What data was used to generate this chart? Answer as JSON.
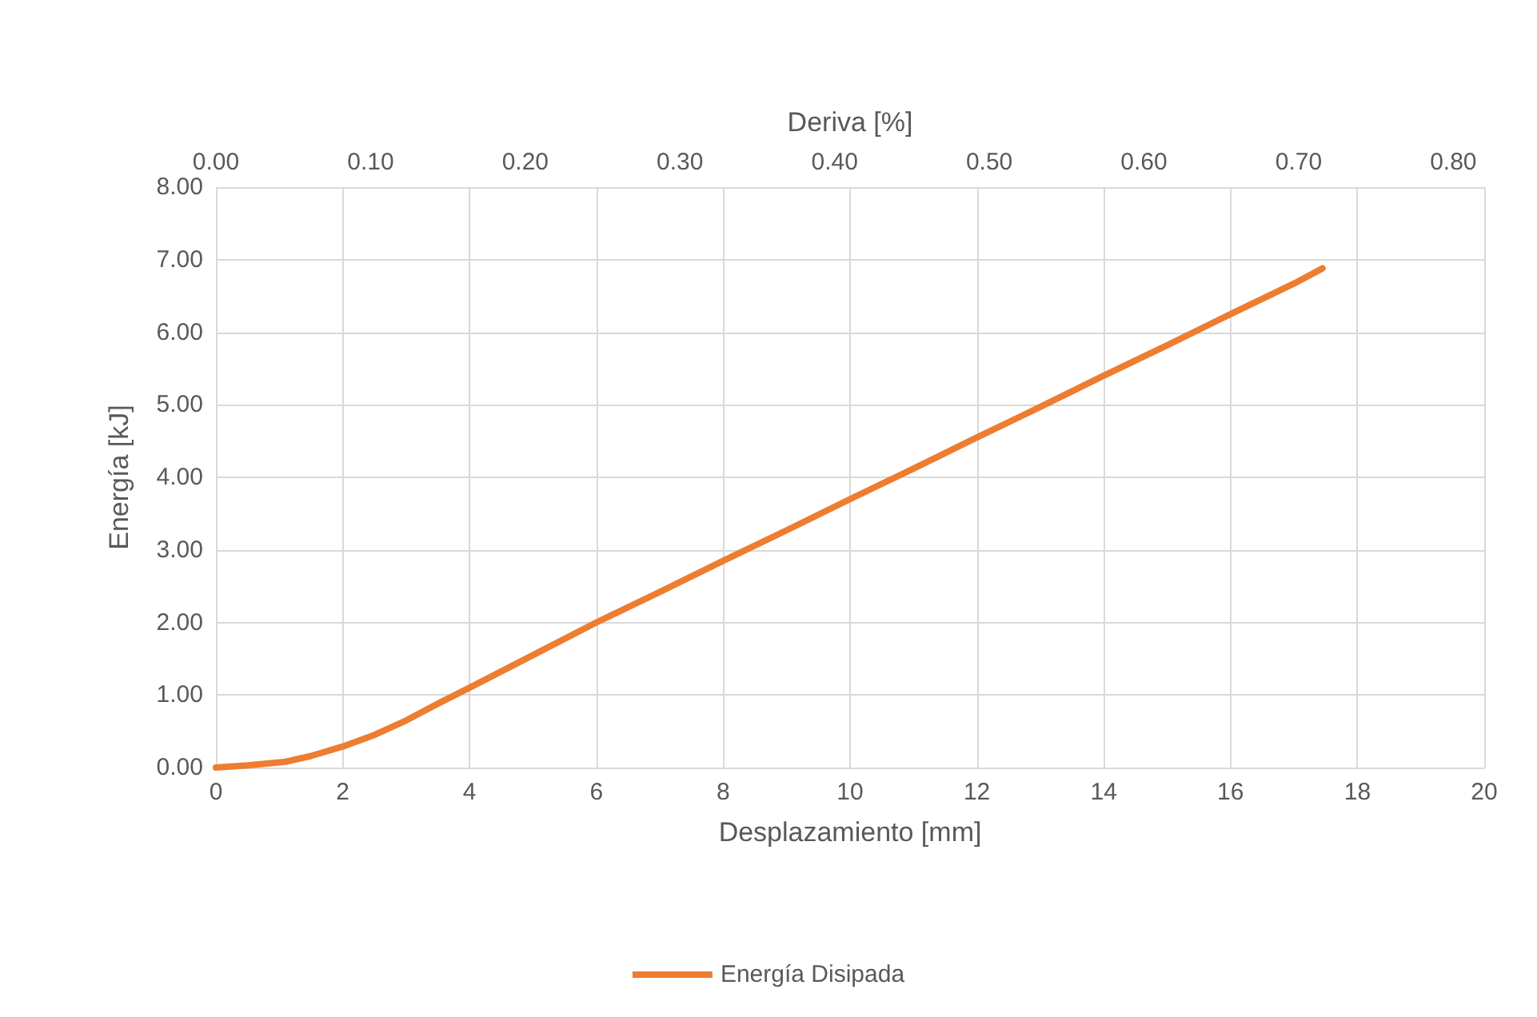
{
  "chart_data": {
    "type": "line",
    "xlabel": "Desplazamiento [mm]",
    "ylabel": "Energía [kJ]",
    "x2label": "Deriva [%]",
    "xlim": [
      0,
      20
    ],
    "xticks": [
      0,
      2,
      4,
      6,
      8,
      10,
      12,
      14,
      16,
      18,
      20
    ],
    "ylim": [
      0,
      8
    ],
    "yticks": [
      {
        "value": 0,
        "label": "0.00"
      },
      {
        "value": 1,
        "label": "1.00"
      },
      {
        "value": 2,
        "label": "2.00"
      },
      {
        "value": 3,
        "label": "3.00"
      },
      {
        "value": 4,
        "label": "4.00"
      },
      {
        "value": 5,
        "label": "5.00"
      },
      {
        "value": 6,
        "label": "6.00"
      },
      {
        "value": 7,
        "label": "7.00"
      },
      {
        "value": 8,
        "label": "8.00"
      }
    ],
    "x2lim": [
      0,
      0.82
    ],
    "x2ticks": [
      {
        "value": 0,
        "label": "0.00"
      },
      {
        "value": 0.1,
        "label": "0.10"
      },
      {
        "value": 0.2,
        "label": "0.20"
      },
      {
        "value": 0.3,
        "label": "0.30"
      },
      {
        "value": 0.4,
        "label": "0.40"
      },
      {
        "value": 0.5,
        "label": "0.50"
      },
      {
        "value": 0.6,
        "label": "0.60"
      },
      {
        "value": 0.7,
        "label": "0.70"
      },
      {
        "value": 0.8,
        "label": "0.80"
      }
    ],
    "grid": true,
    "legend": "bottom",
    "marker": "none",
    "line_style": "solid",
    "series": [
      {
        "name": "Energía Disipada",
        "color": "#ed7d31",
        "x": [
          0,
          0.5,
          1.1,
          1.5,
          2,
          2.5,
          3,
          3.5,
          4,
          5,
          6,
          7,
          8,
          9,
          10,
          11,
          12,
          13,
          14,
          15,
          16,
          17,
          17.45
        ],
        "values": [
          0,
          0.03,
          0.08,
          0.16,
          0.29,
          0.45,
          0.65,
          0.88,
          1.1,
          1.55,
          2.0,
          2.42,
          2.85,
          3.27,
          3.7,
          4.12,
          4.55,
          4.97,
          5.4,
          5.82,
          6.25,
          6.67,
          6.88
        ]
      }
    ]
  }
}
